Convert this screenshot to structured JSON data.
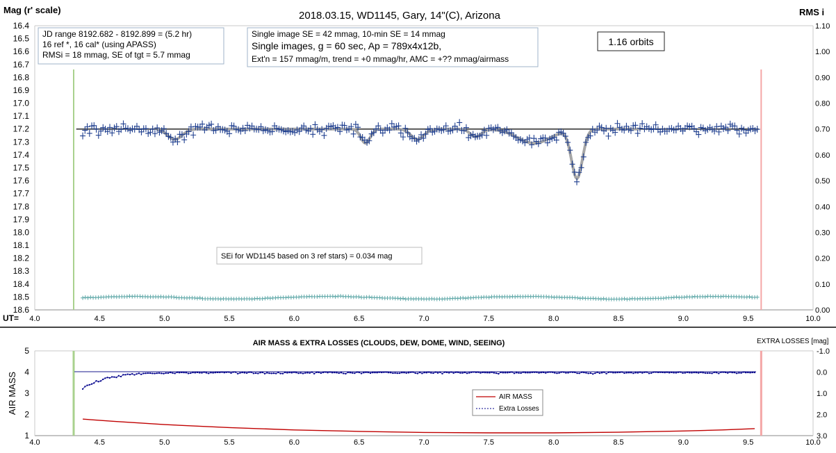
{
  "chart_data": [
    {
      "type": "scatter",
      "title": "2018.03.15,  WD1145, Gary, 14\"(C), Arizona",
      "y_left_label": "Mag (r' scale)",
      "y_right_label": "RMS i",
      "x_label_prefix": "UT=",
      "xlim": [
        4.0,
        10.0
      ],
      "ylim_left": [
        16.4,
        18.6
      ],
      "ylim_right": [
        0.0,
        1.1
      ],
      "y_left_inverted": true,
      "grid": false,
      "x_ticks": [
        "4.0",
        "4.5",
        "5.0",
        "5.5",
        "6.0",
        "6.5",
        "7.0",
        "7.5",
        "8.0",
        "8.5",
        "9.0",
        "9.5",
        "10.0"
      ],
      "y_left_ticks": [
        "16.4",
        "16.5",
        "16.6",
        "16.7",
        "16.8",
        "16.9",
        "17.0",
        "17.1",
        "17.2",
        "17.3",
        "17.4",
        "17.5",
        "17.6",
        "17.7",
        "17.8",
        "17.9",
        "18.0",
        "18.1",
        "18.2",
        "18.3",
        "18.4",
        "18.5",
        "18.6"
      ],
      "y_right_ticks": [
        "0.00",
        "0.10",
        "0.20",
        "0.30",
        "0.40",
        "0.50",
        "0.60",
        "0.70",
        "0.80",
        "0.90",
        "1.00",
        "1.10"
      ],
      "vertical_markers": [
        4.3,
        9.6
      ],
      "reference_level": 17.2,
      "info_box_1": [
        "JD range  8192.682 - 8192.899  = (5.2 hr)",
        "16 ref *, 16 cal* (using APASS)",
        "RMSi = 18 mmag, SE of tgt = 5.7 mmag"
      ],
      "info_box_2": [
        "Single image SE = 42 mmag, 10-min SE = 14 mmag",
        "Single images, g = 60 sec, Ap = 789x4x12b,",
        "Ext'n = 157 mmag/m, trend = +0 mmag/hr, AMC = +?? mmag/airmass"
      ],
      "orbits_label": "1.16 orbits",
      "sei_label": "SEi for WD1145 based on 3 ref stars) = 0.034 mag",
      "model_dips": [
        {
          "center": 5.08,
          "depth": 0.08,
          "width": 0.08
        },
        {
          "center": 6.55,
          "depth": 0.11,
          "width": 0.05
        },
        {
          "center": 6.95,
          "depth": 0.08,
          "width": 0.07
        },
        {
          "center": 7.4,
          "depth": 0.06,
          "width": 0.06
        },
        {
          "center": 7.85,
          "depth": 0.11,
          "width": 0.18
        },
        {
          "center": 8.18,
          "depth": 0.38,
          "width": 0.06
        }
      ],
      "rms_values": {
        "base": 0.047,
        "amplitude": 0.005
      },
      "series": [
        {
          "name": "target",
          "kind": "data-points"
        },
        {
          "name": "model",
          "kind": "line"
        },
        {
          "name": "RMSi",
          "kind": "rms-points"
        }
      ]
    },
    {
      "type": "line",
      "title": "AIR MASS & EXTRA LOSSES (CLOUDS, DEW, DOME, WIND, SEEING)",
      "y_left_label": "AIR MASS",
      "y_right_label": "EXTRA LOSSES [mag]",
      "xlim": [
        4.0,
        10.0
      ],
      "ylim_left": [
        1,
        5
      ],
      "ylim_right": [
        -1.0,
        3.0
      ],
      "y_right_inverted": true,
      "x_ticks": [
        "4.0",
        "4.5",
        "5.0",
        "5.5",
        "6.0",
        "6.5",
        "7.0",
        "7.5",
        "8.0",
        "8.5",
        "9.0",
        "9.5",
        "10.0"
      ],
      "y_left_ticks": [
        "1",
        "2",
        "3",
        "4",
        "5"
      ],
      "y_right_ticks": [
        "-1.0",
        "0.0",
        "1.0",
        "2.0",
        "3.0"
      ],
      "vertical_markers": [
        4.3,
        9.6
      ],
      "series": [
        {
          "name": "AIR MASS",
          "color": "#c00000",
          "x": [
            4.37,
            4.6,
            5.0,
            5.5,
            6.0,
            6.5,
            7.0,
            7.5,
            8.0,
            8.5,
            9.0,
            9.3,
            9.55
          ],
          "y": [
            1.78,
            1.68,
            1.52,
            1.38,
            1.27,
            1.2,
            1.15,
            1.13,
            1.13,
            1.16,
            1.22,
            1.27,
            1.33
          ]
        },
        {
          "name": "Extra Losses",
          "color": "#00008b",
          "x_start": 4.37,
          "x_end": 9.55,
          "settle": 0.0,
          "initial": 0.75
        }
      ]
    }
  ]
}
